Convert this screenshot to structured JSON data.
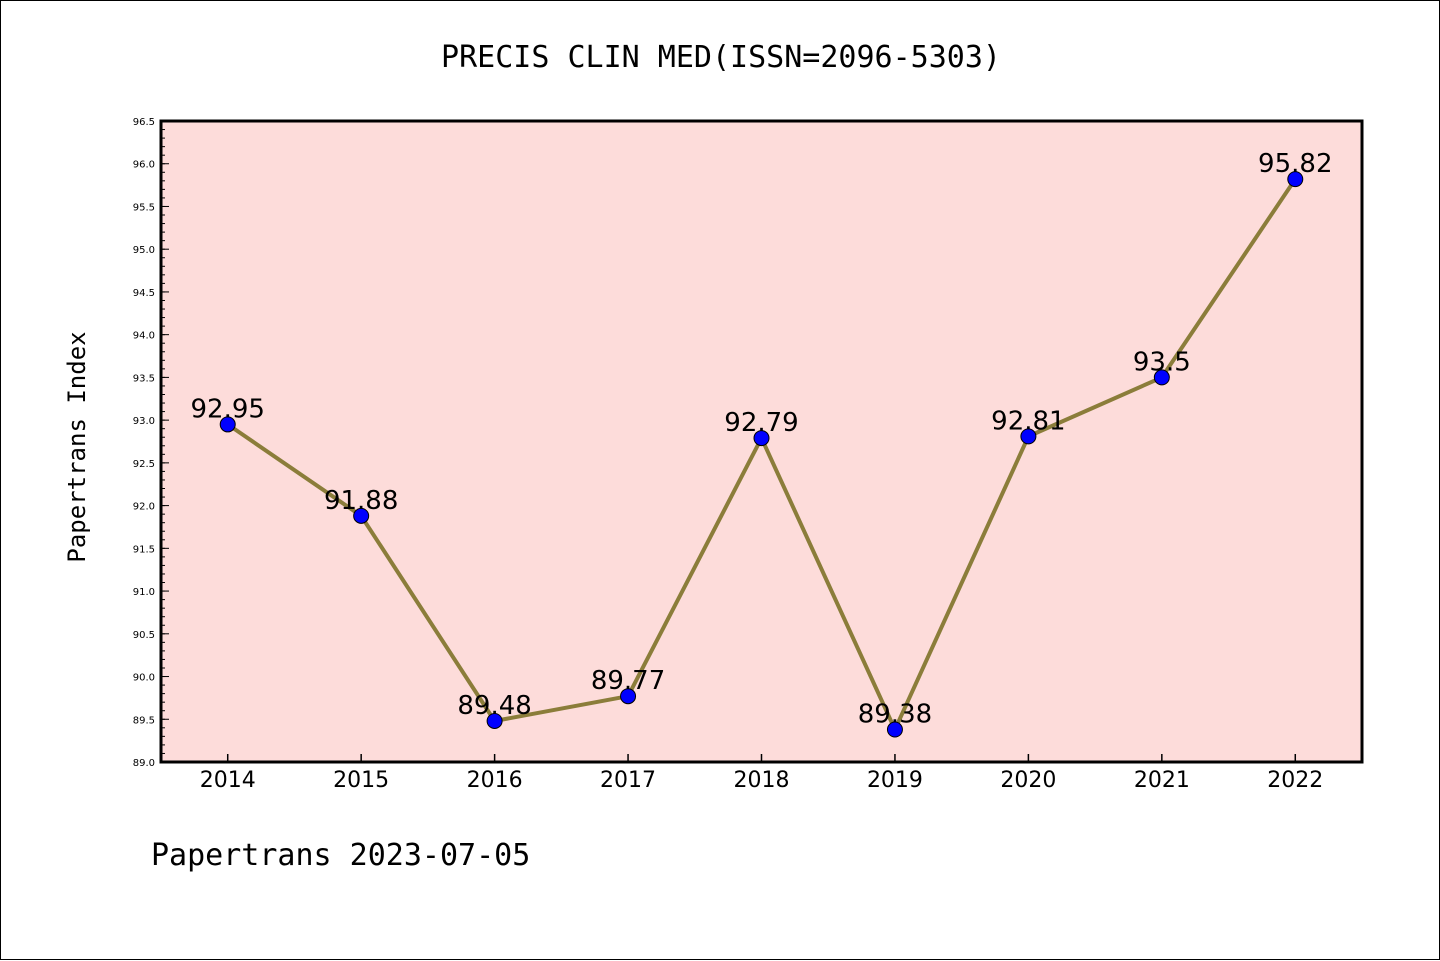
{
  "chart_data": {
    "type": "line",
    "title": "PRECIS CLIN MED(ISSN=2096-5303)",
    "ylabel": "Papertrans Index",
    "xlabel": "",
    "categories": [
      "2014",
      "2015",
      "2016",
      "2017",
      "2018",
      "2019",
      "2020",
      "2021",
      "2022"
    ],
    "values": [
      92.95,
      91.88,
      89.48,
      89.77,
      92.79,
      89.38,
      92.81,
      93.5,
      95.82
    ],
    "data_labels": [
      "92.95",
      "91.88",
      "89.48",
      "89.77",
      "92.79",
      "89.38",
      "92.81",
      "93.5",
      "95.82"
    ],
    "ylim": [
      89.0,
      96.5
    ],
    "yticks": [
      "89.0",
      "89.5",
      "90.0",
      "90.5",
      "91.0",
      "91.5",
      "92.0",
      "92.5",
      "93.0",
      "93.5",
      "94.0",
      "94.5",
      "95.0",
      "95.5",
      "96.0",
      "96.5"
    ],
    "grid": false,
    "colors": {
      "plot_background": "#FDDCDA",
      "line": "#8B7D3A",
      "marker": "#0000FF"
    },
    "footer": "Papertrans 2023-07-05"
  }
}
